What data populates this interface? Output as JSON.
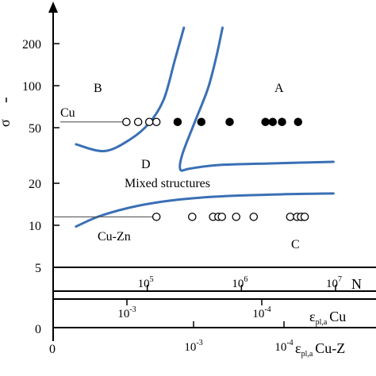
{
  "chart_data": {
    "type": "scatter",
    "colors": {
      "boundary": "#3a6fb5",
      "axis": "#000000",
      "marker": "#000000"
    },
    "y_axis": {
      "scale": "log",
      "range": [
        5,
        300
      ],
      "ticks": [
        {
          "value": 5,
          "label": "5"
        },
        {
          "value": 10,
          "label": "10"
        },
        {
          "value": 20,
          "label": "20"
        },
        {
          "value": 50,
          "label": "50"
        },
        {
          "value": 100,
          "label": "100"
        },
        {
          "value": 200,
          "label": "200"
        }
      ],
      "extra_tick_label": "0",
      "label_partial": "σ"
    },
    "x_axes": [
      {
        "name": "N",
        "label": "N",
        "scale": "log",
        "range": [
          10000,
          10000000
        ],
        "ticks": [
          {
            "value": 100000,
            "base": "10",
            "exp": "5"
          },
          {
            "value": 1000000,
            "base": "10",
            "exp": "6"
          },
          {
            "value": 10000000,
            "base": "10",
            "exp": "7"
          }
        ]
      },
      {
        "name": "eps_cu",
        "label_main": "ε",
        "label_sub": "pl,a",
        "label_suffix": "Cu",
        "ticks": [
          {
            "base": "10",
            "exp": "-3"
          },
          {
            "base": "10",
            "exp": "-4"
          }
        ]
      },
      {
        "name": "eps_cuzn",
        "origin_label": "0",
        "label_main": "ε",
        "label_sub": "pl,a",
        "label_suffix": "Cu-Z",
        "ticks": [
          {
            "base": "10",
            "exp": "-3"
          },
          {
            "base": "10",
            "exp": "-4"
          }
        ]
      }
    ],
    "regions": [
      {
        "id": "A",
        "label": "A"
      },
      {
        "id": "B",
        "label": "B"
      },
      {
        "id": "C",
        "label": "C"
      },
      {
        "id": "D",
        "label": "D"
      },
      {
        "id": "mixed",
        "label": "Mixed structures"
      }
    ],
    "material_labels": [
      {
        "id": "cu",
        "label": "Cu"
      },
      {
        "id": "cuzn",
        "label": "Cu-Zn"
      }
    ],
    "series": [
      {
        "name": "Cu",
        "points": [
          {
            "x": 60000,
            "y": 55,
            "filled": false
          },
          {
            "x": 80000,
            "y": 55,
            "filled": false
          },
          {
            "x": 105000,
            "y": 55,
            "filled": false
          },
          {
            "x": 125000,
            "y": 55,
            "filled": false
          },
          {
            "x": 210000,
            "y": 55,
            "filled": true
          },
          {
            "x": 375000,
            "y": 55,
            "filled": true
          },
          {
            "x": 750000,
            "y": 55,
            "filled": true
          },
          {
            "x": 1800000,
            "y": 55,
            "filled": true
          },
          {
            "x": 2150000,
            "y": 55,
            "filled": true
          },
          {
            "x": 2700000,
            "y": 55,
            "filled": true
          },
          {
            "x": 4000000,
            "y": 55,
            "filled": true
          }
        ]
      },
      {
        "name": "Cu-Zn",
        "points": [
          {
            "x": 125000,
            "y": 11.5,
            "filled": false
          },
          {
            "x": 300000,
            "y": 11.5,
            "filled": false
          },
          {
            "x": 500000,
            "y": 11.5,
            "filled": false
          },
          {
            "x": 570000,
            "y": 11.5,
            "filled": false
          },
          {
            "x": 620000,
            "y": 11.5,
            "filled": false
          },
          {
            "x": 880000,
            "y": 11.5,
            "filled": false
          },
          {
            "x": 1350000,
            "y": 11.5,
            "filled": false
          },
          {
            "x": 3300000,
            "y": 11.5,
            "filled": false
          },
          {
            "x": 3900000,
            "y": 11.5,
            "filled": false
          },
          {
            "x": 4300000,
            "y": 11.5,
            "filled": false
          },
          {
            "x": 4700000,
            "y": 11.5,
            "filled": false
          }
        ]
      }
    ],
    "boundaries": [
      {
        "name": "B-D boundary",
        "points": [
          [
            17500,
            38
          ],
          [
            35000,
            34
          ],
          [
            65000,
            41
          ],
          [
            105000,
            54
          ],
          [
            150000,
            80
          ],
          [
            195000,
            150
          ],
          [
            245000,
            260
          ]
        ]
      },
      {
        "name": "A-D boundary",
        "points": [
          [
            630000,
            260
          ],
          [
            540000,
            160
          ],
          [
            440000,
            95
          ],
          [
            320000,
            55
          ],
          [
            235000,
            32
          ],
          [
            225000,
            25
          ],
          [
            285000,
            25.5
          ],
          [
            560000,
            27
          ],
          [
            2300000,
            27.8
          ],
          [
            9500000,
            28.5
          ]
        ]
      },
      {
        "name": "C boundary",
        "points": [
          [
            17500,
            9.8
          ],
          [
            32000,
            11.7
          ],
          [
            80000,
            13.8
          ],
          [
            220000,
            15.3
          ],
          [
            700000,
            16.2
          ],
          [
            3000000,
            16.7
          ],
          [
            9500000,
            16.9
          ]
        ]
      }
    ]
  }
}
